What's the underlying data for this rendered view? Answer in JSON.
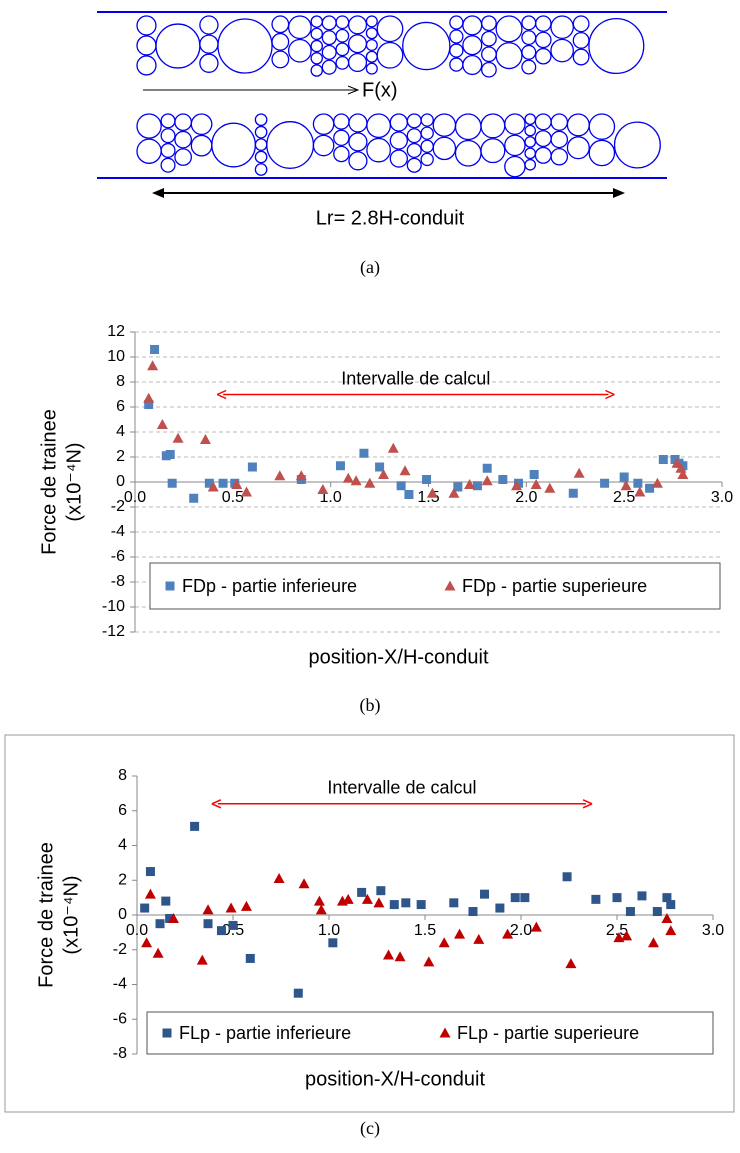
{
  "diagram": {
    "force_label": "F(x)",
    "length_label": "Lr= 2.8H-conduit",
    "caption": "(a)"
  },
  "chart_data": [
    {
      "type": "scatter",
      "caption": "(b)",
      "ylabel": [
        "Force de trainee",
        "(x10⁻⁴N)"
      ],
      "xlabel": "position-X/H-conduit",
      "annotation": {
        "text": "Intervalle de calcul",
        "x": [
          0.42,
          2.45
        ],
        "y": 7,
        "color": "#ff0000"
      },
      "xlim": [
        0,
        3
      ],
      "xticks": [
        {
          "value": 0,
          "label": "0.0"
        },
        0.5,
        {
          "value": 1,
          "label": "1.0"
        },
        1.5,
        {
          "value": 2,
          "label": "2.0"
        },
        2.5,
        {
          "value": 3,
          "label": "3.0"
        }
      ],
      "ylim": [
        -12,
        12
      ],
      "yticks": [
        -12,
        -10,
        -8,
        -6,
        -4,
        -2,
        0,
        2,
        4,
        6,
        8,
        10,
        12
      ],
      "grid": true,
      "legend": "bottom",
      "series": [
        {
          "name": "FDp - partie inferieure",
          "color": "#4f81bd",
          "marker": "square",
          "x": [
            0.07,
            0.1,
            0.16,
            0.18,
            0.19,
            0.3,
            0.38,
            0.45,
            0.51,
            0.6,
            0.85,
            1.05,
            1.17,
            1.25,
            1.36,
            1.4,
            1.49,
            1.65,
            1.75,
            1.8,
            1.88,
            1.96,
            2.04,
            2.24,
            2.4,
            2.5,
            2.57,
            2.63,
            2.7,
            2.76,
            2.78,
            2.8
          ],
          "values": [
            6.2,
            10.6,
            2.1,
            2.2,
            -0.1,
            -1.3,
            -0.1,
            -0.1,
            -0.1,
            1.2,
            0.2,
            1.3,
            2.3,
            1.2,
            -0.3,
            -1.0,
            0.2,
            -0.4,
            -0.3,
            1.1,
            0.2,
            -0.1,
            0.6,
            -0.9,
            -0.1,
            0.4,
            -0.1,
            -0.5,
            1.8,
            1.8,
            1.5,
            1.3
          ]
        },
        {
          "name": "FDp - partie superieure",
          "color": "#c0504d",
          "marker": "triangle",
          "x": [
            0.07,
            0.09,
            0.14,
            0.22,
            0.36,
            0.4,
            0.52,
            0.57,
            0.74,
            0.85,
            0.96,
            1.09,
            1.13,
            1.2,
            1.27,
            1.32,
            1.38,
            1.52,
            1.63,
            1.71,
            1.8,
            1.95,
            2.05,
            2.12,
            2.27,
            2.51,
            2.58,
            2.67,
            2.77,
            2.79,
            2.8
          ],
          "values": [
            6.7,
            9.3,
            4.6,
            3.5,
            3.4,
            -0.4,
            -0.2,
            -0.8,
            0.5,
            0.5,
            -0.6,
            0.3,
            0.1,
            -0.1,
            0.6,
            2.7,
            0.9,
            -0.9,
            -0.9,
            -0.2,
            0.1,
            -0.3,
            -0.2,
            -0.5,
            0.7,
            -0.3,
            -0.8,
            -0.1,
            1.5,
            1.1,
            0.6
          ]
        }
      ]
    },
    {
      "type": "scatter",
      "caption": "(c)",
      "ylabel": [
        "Force de trainee",
        "(x10⁻⁴N)"
      ],
      "xlabel": "position-X/H-conduit",
      "annotation": {
        "text": "Intervalle de calcul",
        "x": [
          0.39,
          2.37
        ],
        "y": 6.4,
        "color": "#ff0000"
      },
      "xlim": [
        0,
        3
      ],
      "xticks": [
        {
          "value": 0,
          "label": "0.0"
        },
        0.5,
        {
          "value": 1,
          "label": "1.0"
        },
        1.5,
        {
          "value": 2,
          "label": "2.0"
        },
        2.5,
        {
          "value": 3,
          "label": "3.0"
        }
      ],
      "ylim": [
        -8,
        8
      ],
      "yticks": [
        -8,
        -6,
        -4,
        -2,
        0,
        2,
        4,
        6,
        8
      ],
      "grid": false,
      "legend": "bottom",
      "series": [
        {
          "name": "FLp - partie inferieure",
          "color": "#2e568a",
          "marker": "square",
          "x": [
            0.04,
            0.07,
            0.12,
            0.15,
            0.17,
            0.3,
            0.37,
            0.44,
            0.5,
            0.59,
            0.84,
            1.02,
            1.17,
            1.27,
            1.34,
            1.4,
            1.48,
            1.65,
            1.75,
            1.81,
            1.89,
            1.97,
            2.02,
            2.24,
            2.39,
            2.5,
            2.57,
            2.63,
            2.71,
            2.76,
            2.78
          ],
          "values": [
            0.4,
            2.5,
            -0.5,
            0.8,
            -0.2,
            5.1,
            -0.5,
            -0.9,
            -0.6,
            -2.5,
            -4.5,
            -1.6,
            1.3,
            1.4,
            0.6,
            0.7,
            0.6,
            0.7,
            0.2,
            1.2,
            0.4,
            1.0,
            1.0,
            2.2,
            0.9,
            1.0,
            0.2,
            1.1,
            0.2,
            1.0,
            0.6
          ]
        },
        {
          "name": "FLp - partie superieure",
          "color": "#c00000",
          "marker": "triangle",
          "x": [
            0.05,
            0.07,
            0.11,
            0.19,
            0.34,
            0.37,
            0.49,
            0.57,
            0.74,
            0.87,
            0.95,
            0.96,
            1.07,
            1.1,
            1.2,
            1.26,
            1.31,
            1.37,
            1.52,
            1.6,
            1.68,
            1.78,
            1.93,
            2.08,
            2.26,
            2.51,
            2.55,
            2.69,
            2.76,
            2.78
          ],
          "values": [
            -1.6,
            1.2,
            -2.2,
            -0.2,
            -2.6,
            0.3,
            0.4,
            0.5,
            2.1,
            1.8,
            0.8,
            0.3,
            0.8,
            0.9,
            0.9,
            0.7,
            -2.3,
            -2.4,
            -2.7,
            -1.6,
            -1.1,
            -1.4,
            -1.1,
            -0.7,
            -2.8,
            -1.3,
            -1.2,
            -1.6,
            -0.2,
            -0.9
          ]
        }
      ]
    }
  ]
}
